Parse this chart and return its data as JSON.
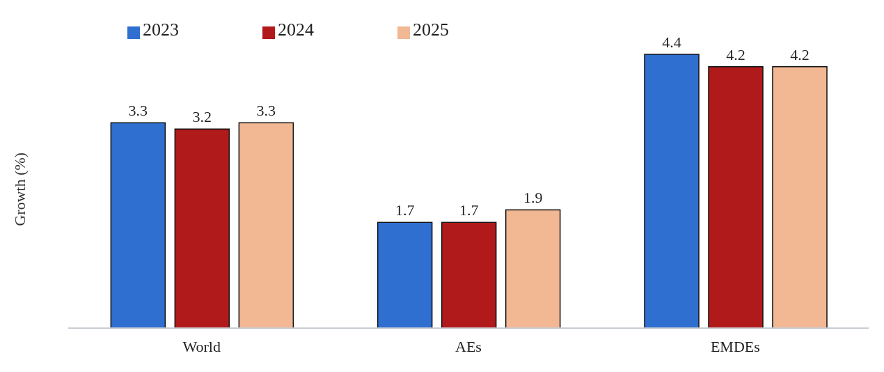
{
  "chart_data": {
    "type": "bar",
    "ylabel": "Growth (%)",
    "categories": [
      "World",
      "AEs",
      "EMDEs"
    ],
    "series": [
      {
        "name": "2023",
        "color": "#2e6fd0",
        "values": [
          3.3,
          1.7,
          4.4
        ]
      },
      {
        "name": "2024",
        "color": "#b01a1a",
        "values": [
          3.2,
          1.7,
          4.2
        ]
      },
      {
        "name": "2025",
        "color": "#f2b894",
        "values": [
          3.3,
          1.9,
          4.2
        ]
      }
    ],
    "data_labels": true,
    "legend": "top left",
    "grid": false
  }
}
